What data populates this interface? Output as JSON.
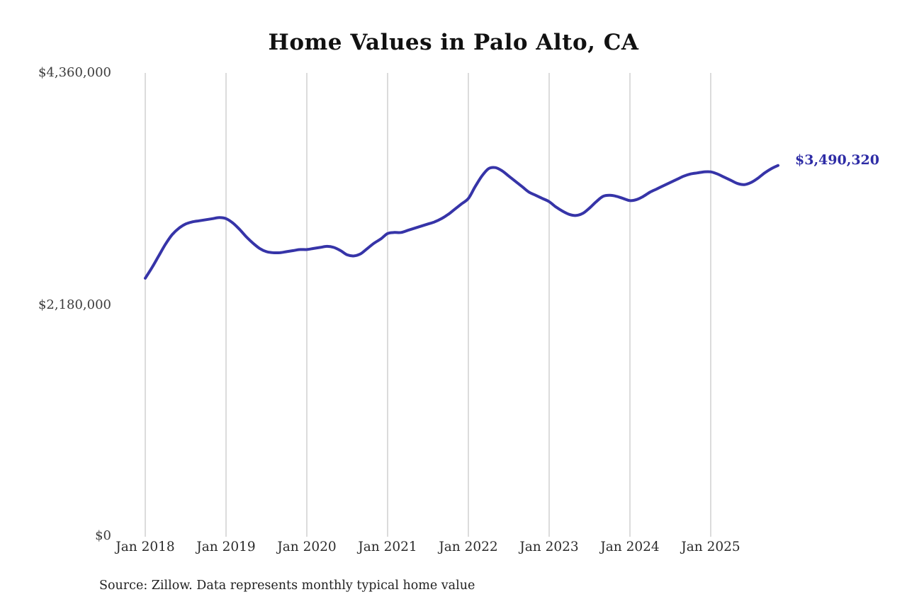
{
  "title": "Home Values in Palo Alto, CA",
  "source_note": "Source: Zillow. Data represents monthly typical home value",
  "colors": {
    "line": "#3634a8",
    "end_label": "#2e2ca6",
    "gridline": "#c8c8c8",
    "axis_text": "#3d3d3d",
    "background": "#ffffff"
  },
  "chart_data": {
    "type": "line",
    "title": "Home Values in Palo Alto, CA",
    "xlabel": "",
    "ylabel": "",
    "ylim": [
      0,
      4360000
    ],
    "grid": "vertical-only",
    "legend": "none",
    "end_label": "$3,490,320",
    "end_value": 3490320,
    "y_ticks": [
      {
        "label": "$0",
        "value": 0
      },
      {
        "label": "$2,180,000",
        "value": 2180000
      },
      {
        "label": "$4,360,000",
        "value": 4360000
      }
    ],
    "x_tick_labels": [
      "Jan 2018",
      "Jan 2019",
      "Jan 2020",
      "Jan 2021",
      "Jan 2022",
      "Jan 2023",
      "Jan 2024",
      "Jan 2025"
    ],
    "x": [
      "2018-01",
      "2018-02",
      "2018-03",
      "2018-04",
      "2018-05",
      "2018-06",
      "2018-07",
      "2018-08",
      "2018-09",
      "2018-10",
      "2018-11",
      "2018-12",
      "2019-01",
      "2019-02",
      "2019-03",
      "2019-04",
      "2019-05",
      "2019-06",
      "2019-07",
      "2019-08",
      "2019-09",
      "2019-10",
      "2019-11",
      "2019-12",
      "2020-01",
      "2020-02",
      "2020-03",
      "2020-04",
      "2020-05",
      "2020-06",
      "2020-07",
      "2020-08",
      "2020-09",
      "2020-10",
      "2020-11",
      "2020-12",
      "2021-01",
      "2021-02",
      "2021-03",
      "2021-04",
      "2021-05",
      "2021-06",
      "2021-07",
      "2021-08",
      "2021-09",
      "2021-10",
      "2021-11",
      "2021-12",
      "2022-01",
      "2022-02",
      "2022-03",
      "2022-04",
      "2022-05",
      "2022-06",
      "2022-07",
      "2022-08",
      "2022-09",
      "2022-10",
      "2022-11",
      "2022-12",
      "2023-01",
      "2023-02",
      "2023-03",
      "2023-04",
      "2023-05",
      "2023-06",
      "2023-07",
      "2023-08",
      "2023-09",
      "2023-10",
      "2023-11",
      "2023-12",
      "2024-01",
      "2024-02",
      "2024-03",
      "2024-04",
      "2024-05",
      "2024-06",
      "2024-07",
      "2024-08",
      "2024-09",
      "2024-10",
      "2024-11",
      "2024-12",
      "2025-01",
      "2025-02",
      "2025-03",
      "2025-04",
      "2025-05",
      "2025-06",
      "2025-07",
      "2025-08",
      "2025-09",
      "2025-10",
      "2025-11"
    ],
    "values": [
      2430000,
      2530000,
      2640000,
      2750000,
      2840000,
      2900000,
      2940000,
      2960000,
      2970000,
      2980000,
      2990000,
      3000000,
      2990000,
      2950000,
      2890000,
      2820000,
      2760000,
      2710000,
      2680000,
      2670000,
      2670000,
      2680000,
      2690000,
      2700000,
      2700000,
      2710000,
      2720000,
      2730000,
      2720000,
      2690000,
      2650000,
      2640000,
      2660000,
      2710000,
      2760000,
      2800000,
      2850000,
      2860000,
      2860000,
      2880000,
      2900000,
      2920000,
      2940000,
      2960000,
      2990000,
      3030000,
      3080000,
      3130000,
      3180000,
      3290000,
      3390000,
      3460000,
      3470000,
      3440000,
      3390000,
      3340000,
      3290000,
      3240000,
      3210000,
      3180000,
      3150000,
      3100000,
      3060000,
      3030000,
      3020000,
      3040000,
      3090000,
      3150000,
      3200000,
      3210000,
      3200000,
      3180000,
      3160000,
      3170000,
      3200000,
      3240000,
      3270000,
      3300000,
      3330000,
      3360000,
      3390000,
      3410000,
      3420000,
      3430000,
      3430000,
      3410000,
      3380000,
      3350000,
      3320000,
      3310000,
      3330000,
      3370000,
      3420000,
      3460000,
      3490320
    ]
  }
}
